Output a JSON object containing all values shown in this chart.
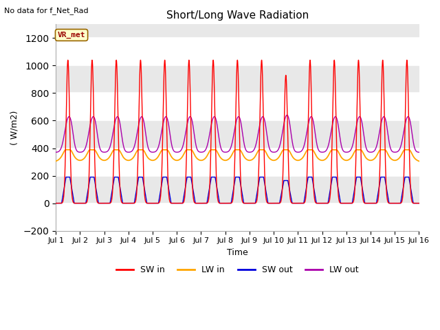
{
  "title": "Short/Long Wave Radiation",
  "xlabel": "Time",
  "ylabel": "( W/m2)",
  "ylim": [
    -200,
    1300
  ],
  "yticks": [
    -200,
    0,
    200,
    400,
    600,
    800,
    1000,
    1200
  ],
  "note": "No data for f_Net_Rad",
  "legend_label": "VR_met",
  "colors": {
    "sw_in": "#FF0000",
    "lw_in": "#FFA500",
    "sw_out": "#0000DD",
    "lw_out": "#AA00AA",
    "background": "#FFFFFF",
    "plot_bg": "#E8E8E8",
    "grid_white": "#FFFFFF",
    "vr_met_bg": "#FFFFCC",
    "vr_met_border": "#996600",
    "vr_met_text": "#990000"
  },
  "xtick_labels": [
    "Jul 1",
    "Jul 2",
    "Jul 3",
    "Jul 4",
    "Jul 5",
    "Jul 6",
    "Jul 7",
    "Jul 8",
    "Jul 9",
    "Jul 10",
    "Jul 11",
    "Jul 12",
    "Jul 13",
    "Jul 14",
    "Jul 15",
    "Jul 16"
  ],
  "xtick_positions": [
    1,
    2,
    3,
    4,
    5,
    6,
    7,
    8,
    9,
    10,
    11,
    12,
    13,
    14,
    15,
    16
  ]
}
